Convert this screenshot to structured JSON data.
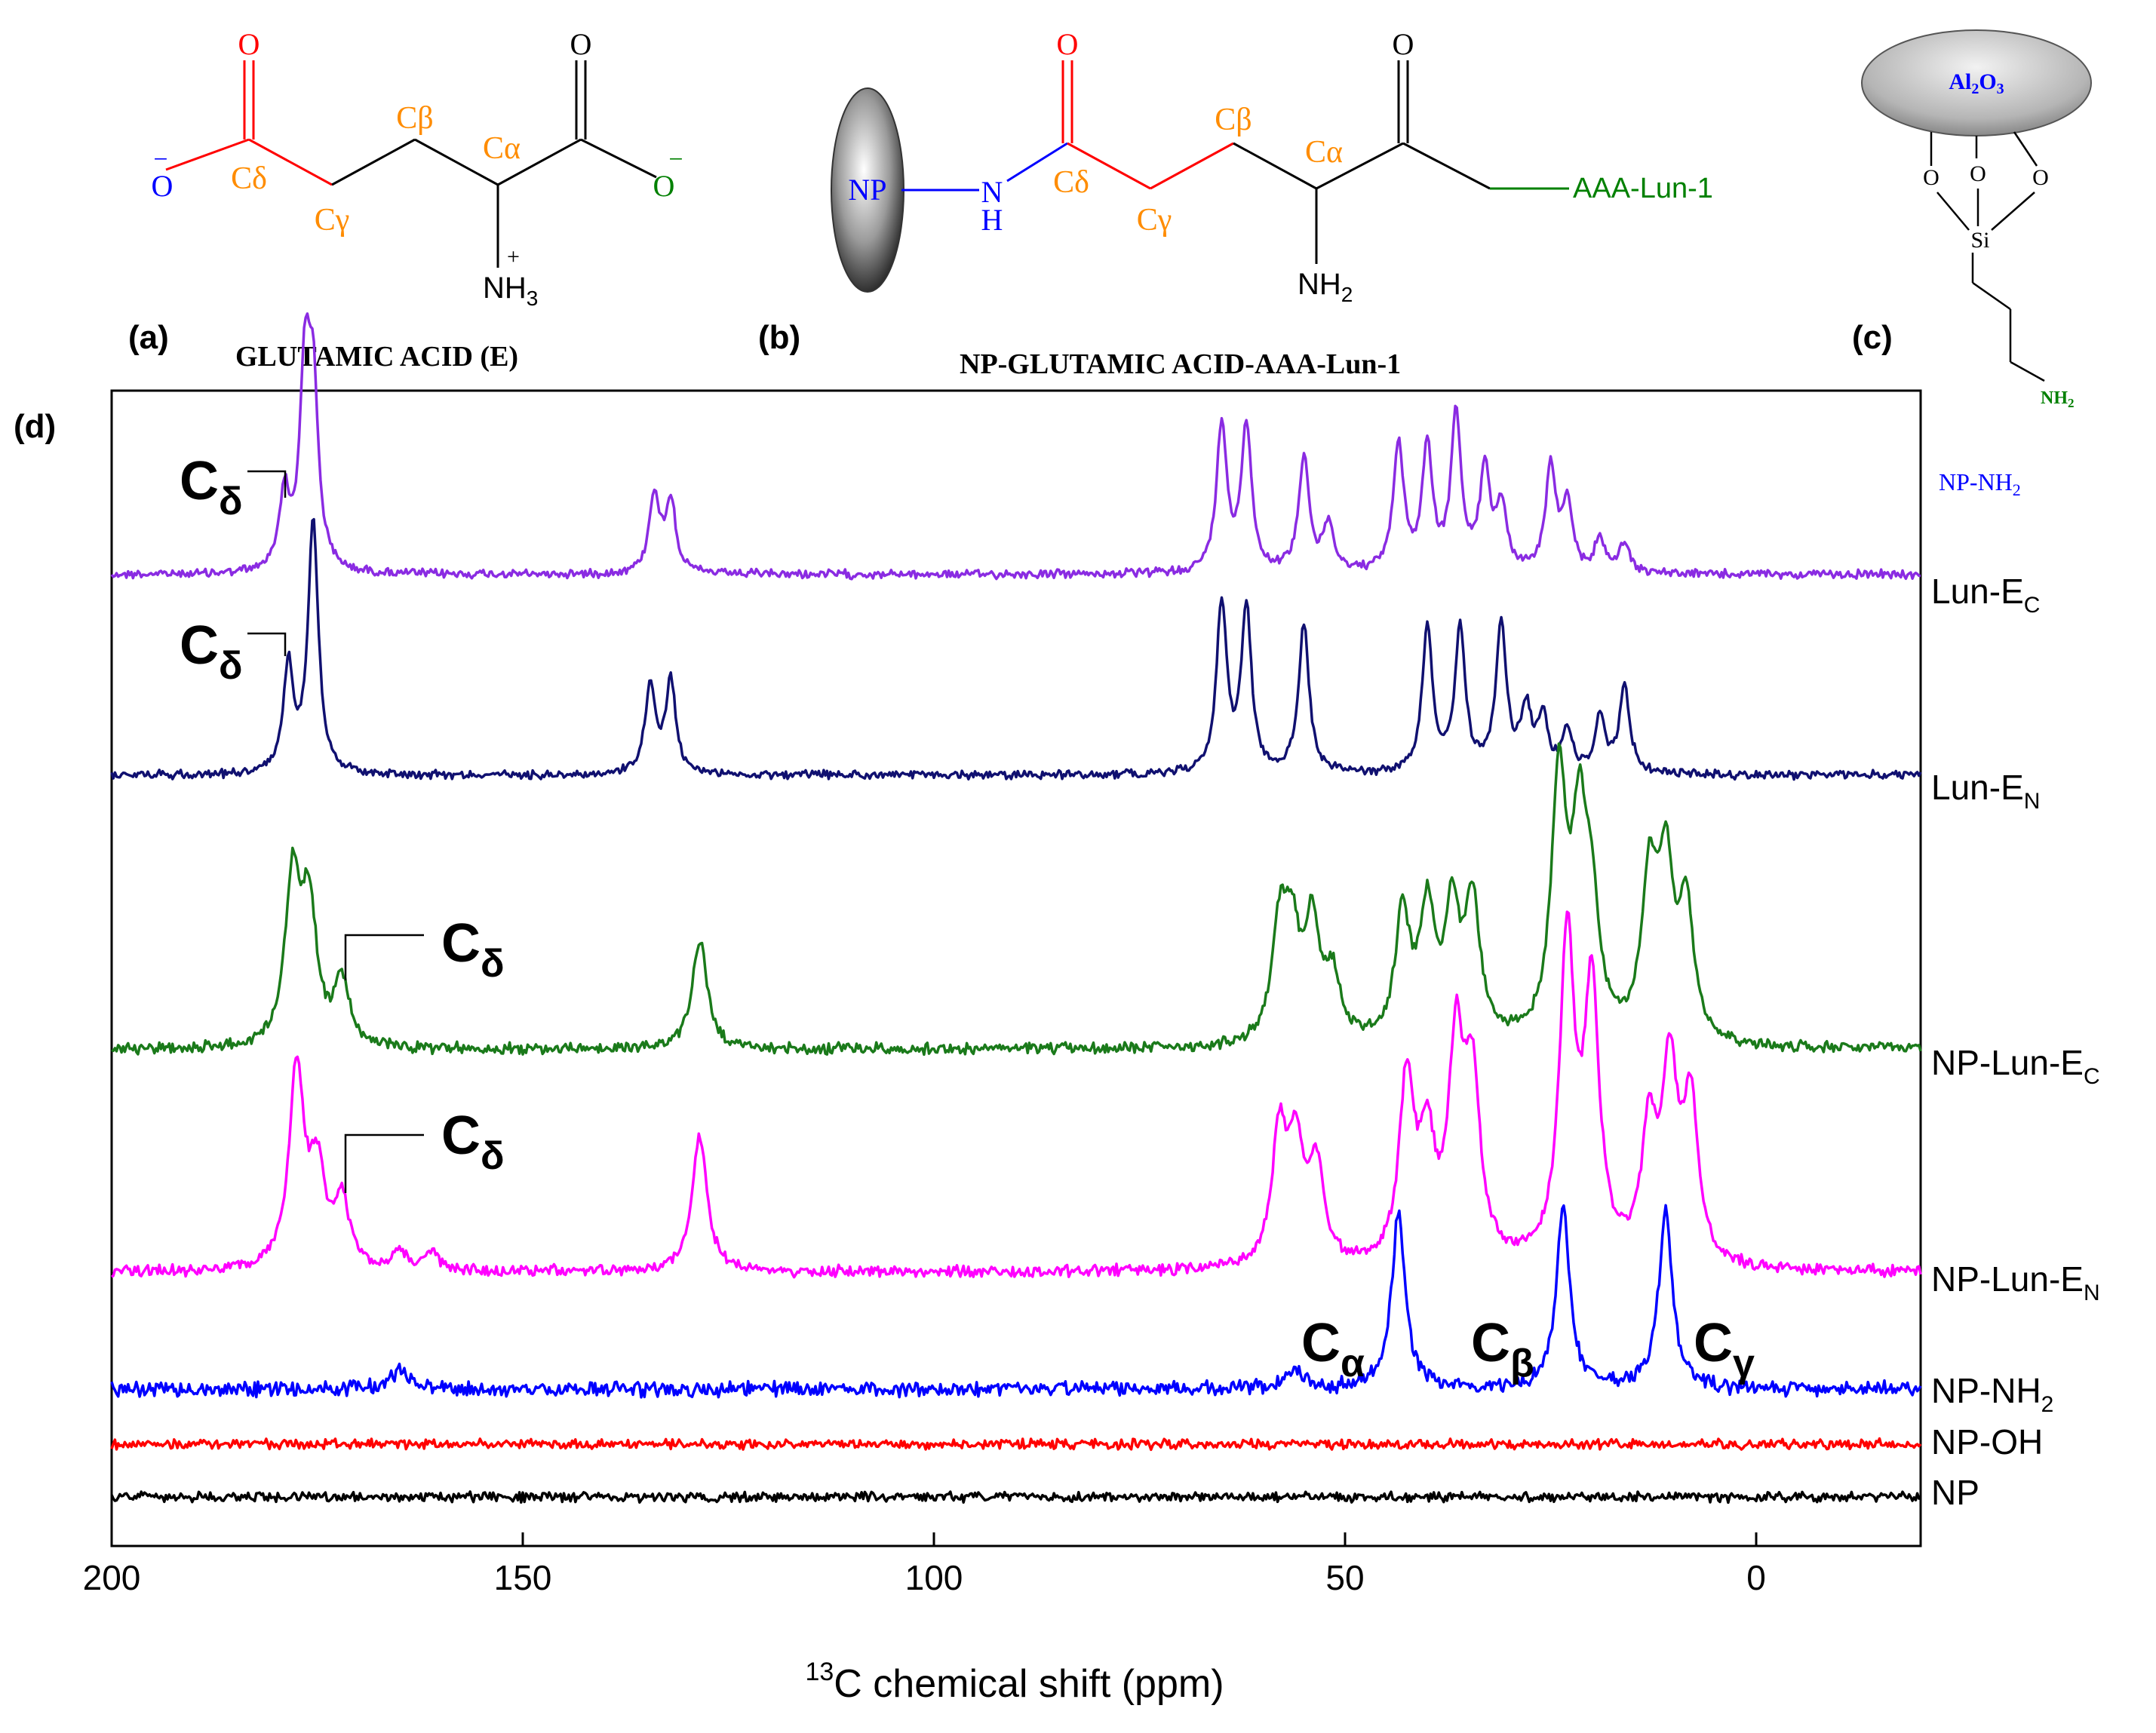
{
  "panels": {
    "a": {
      "label": "(a)",
      "title": "GLUTAMIC ACID (E)"
    },
    "b": {
      "label": "(b)",
      "title": "NP-GLUTAMIC ACID-AAA-Lun-1"
    },
    "c": {
      "label": "(c)",
      "title": "NP-NH2"
    },
    "d": {
      "label": "(d)"
    }
  },
  "structures": {
    "carbonyl_o": "O",
    "carboxylate_o": "O",
    "neg_charge": "−",
    "pos_charge": "+",
    "c_delta": "Cδ",
    "c_gamma": "Cγ",
    "c_beta": "Cβ",
    "c_alpha": "Cα",
    "nh3": "NH",
    "nh3_sub": "3",
    "nh2": "NH",
    "nh2_sub": "2",
    "np": "NP",
    "n": "N",
    "h": "H",
    "aaa_lun": "AAA-Lun-1",
    "al2o3": "Al",
    "al2o3_sub": "2",
    "al2o3_o": "O",
    "al2o3_sub2": "3",
    "si": "Si",
    "o": "O",
    "nh2_green": "NH",
    "nh2_green_sub": "2"
  },
  "colors": {
    "lun_ec": "#8a2be2",
    "lun_en": "#101070",
    "np_lun_ec": "#1a7a1a",
    "np_lun_en": "#ff00ff",
    "np_nh2": "#0000ff",
    "np_oh": "#ff0000",
    "np": "#000000",
    "red_fragment": "#ff0000",
    "orange_labels": "#ff8c00",
    "blue_fragment": "#0000ff",
    "green_fragment": "#008000"
  },
  "chart_data": {
    "type": "line",
    "xlabel_sup": "13",
    "xlabel": "C chemical shift (ppm)",
    "xlim": [
      200,
      -20
    ],
    "x_ticks": [
      200,
      150,
      100,
      50,
      0
    ],
    "x_tick_labels": [
      "200",
      "150",
      "100",
      "50",
      "0"
    ],
    "series": [
      {
        "name": "Lun-E",
        "sub": "C",
        "color": "#8a2be2",
        "peaks": [
          [
            179,
            0.4
          ],
          [
            176.5,
            1.0
          ],
          [
            175.5,
            0.9
          ],
          [
            134,
            0.42
          ],
          [
            132,
            0.38
          ],
          [
            65,
            0.78
          ],
          [
            62,
            0.78
          ],
          [
            55,
            0.62
          ],
          [
            52,
            0.25
          ],
          [
            43.5,
            0.68
          ],
          [
            40,
            0.66
          ],
          [
            36.5,
            0.82
          ],
          [
            33,
            0.52
          ],
          [
            31,
            0.35
          ],
          [
            25,
            0.55
          ],
          [
            23,
            0.35
          ],
          [
            19,
            0.18
          ],
          [
            16,
            0.16
          ]
        ]
      },
      {
        "name": "Lun-E",
        "sub": "N",
        "color": "#101070",
        "peaks": [
          [
            178.5,
            0.55
          ],
          [
            175.5,
            1.33
          ],
          [
            134.5,
            0.45
          ],
          [
            132,
            0.48
          ],
          [
            65,
            0.88
          ],
          [
            62,
            0.85
          ],
          [
            55,
            0.78
          ],
          [
            40,
            0.75
          ],
          [
            36,
            0.75
          ],
          [
            31,
            0.78
          ],
          [
            28,
            0.32
          ],
          [
            26,
            0.28
          ],
          [
            23,
            0.22
          ],
          [
            19,
            0.28
          ],
          [
            16,
            0.45
          ]
        ]
      },
      {
        "name": "NP-Lun-E",
        "sub": "C",
        "color": "#1a7a1a",
        "peaks": [
          [
            178,
            0.72
          ],
          [
            176,
            0.6
          ],
          [
            172,
            0.28
          ],
          [
            128.5,
            0.48
          ],
          [
            58,
            0.48
          ],
          [
            56.5,
            0.45
          ],
          [
            54,
            0.5
          ],
          [
            51.5,
            0.28
          ],
          [
            43,
            0.55
          ],
          [
            40,
            0.55
          ],
          [
            37,
            0.55
          ],
          [
            34.5,
            0.6
          ],
          [
            24,
            1.15
          ],
          [
            21.5,
            0.85
          ],
          [
            20,
            0.5
          ],
          [
            13,
            0.68
          ],
          [
            11,
            0.72
          ],
          [
            8.5,
            0.58
          ]
        ]
      },
      {
        "name": "NP-Lun-E",
        "sub": "N",
        "color": "#ff00ff",
        "peaks": [
          [
            177.5,
            0.85
          ],
          [
            175,
            0.4
          ],
          [
            172,
            0.28
          ],
          [
            165,
            0.08
          ],
          [
            161,
            0.07
          ],
          [
            128.5,
            0.58
          ],
          [
            58,
            0.55
          ],
          [
            56,
            0.48
          ],
          [
            53.5,
            0.42
          ],
          [
            42.5,
            0.78
          ],
          [
            40,
            0.48
          ],
          [
            36.5,
            0.9
          ],
          [
            34.5,
            0.75
          ],
          [
            23,
            1.38
          ],
          [
            20,
            1.15
          ],
          [
            13,
            0.55
          ],
          [
            10.5,
            0.8
          ],
          [
            8,
            0.68
          ]
        ]
      },
      {
        "name": "NP-NH",
        "sub": "2",
        "color": "#0000ff",
        "peaks": [
          [
            165,
            0.12
          ],
          [
            56,
            0.12
          ],
          [
            43.5,
            1.0
          ],
          [
            23.5,
            1.0
          ],
          [
            11,
            1.0
          ]
        ]
      },
      {
        "name": "NP-OH",
        "sub": "",
        "color": "#ff0000",
        "peaks": []
      },
      {
        "name": "NP",
        "sub": "",
        "color": "#000000",
        "peaks": []
      }
    ],
    "annotations": [
      {
        "text": "C",
        "sub": "δ"
      },
      {
        "text": "C",
        "sub": "δ"
      },
      {
        "text": "C",
        "sub": "δ"
      },
      {
        "text": "C",
        "sub": "δ"
      },
      {
        "text": "C",
        "sub": "α"
      },
      {
        "text": "C",
        "sub": "β"
      },
      {
        "text": "C",
        "sub": "γ"
      }
    ]
  }
}
